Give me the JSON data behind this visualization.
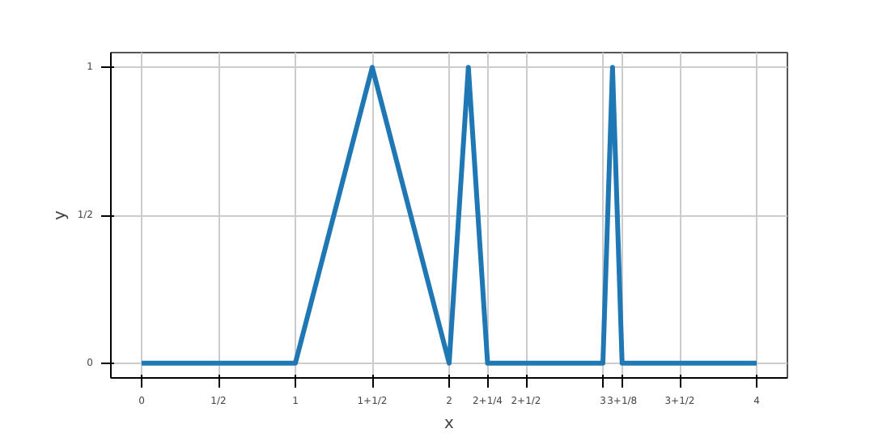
{
  "chart_data": {
    "type": "line",
    "xlabel": "x",
    "ylabel": "y",
    "x": [
      0,
      1,
      1.5,
      2,
      2.125,
      2.25,
      3,
      3.0625,
      3.125,
      4
    ],
    "series": [
      {
        "color": "#1f77b4",
        "values": [
          0,
          0,
          1,
          0,
          1,
          0,
          0,
          1,
          0,
          0
        ]
      }
    ],
    "xlim": [
      -0.2,
      4.2
    ],
    "ylim": [
      -0.05,
      1.05
    ],
    "xticks": [
      0,
      {
        "value": 0.5,
        "label": "1/2"
      },
      1,
      {
        "value": 1.5,
        "label": "1+1/2"
      },
      2,
      {
        "value": 2.25,
        "label": "2+1/4"
      },
      {
        "value": 2.5,
        "label": "2+1/2"
      },
      3,
      {
        "value": 3.125,
        "label": "3+1/8"
      },
      {
        "value": 3.5,
        "label": "3+1/2"
      },
      4
    ],
    "yticks": [
      0,
      {
        "value": 0.5,
        "label": "1/2"
      },
      1
    ],
    "grid": true,
    "line_style": "solid",
    "marker": "none"
  }
}
